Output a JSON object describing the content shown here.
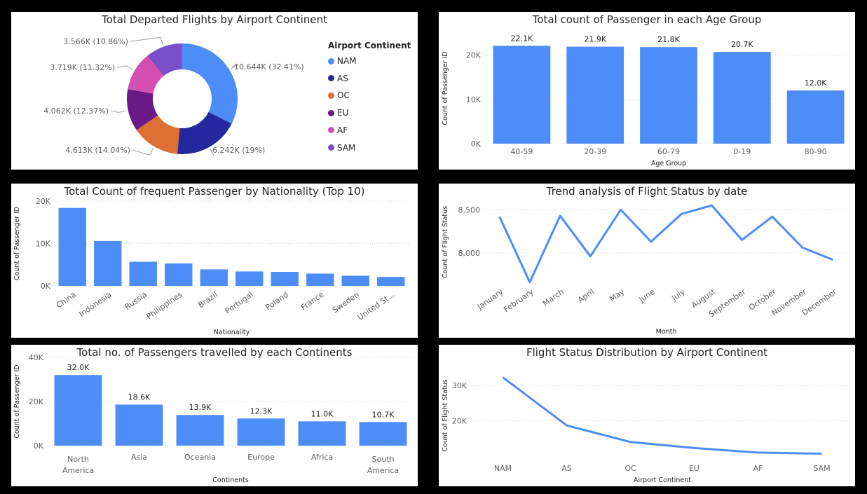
{
  "colors": {
    "bar": "#4c8df7",
    "grid": "#dcdcdc"
  },
  "chart_data": [
    {
      "id": "donut",
      "type": "pie",
      "title": "Total Departed Flights by Airport Continent",
      "legend_title": "Airport Continent",
      "legend_position": "right",
      "slices": [
        {
          "name": "NAM",
          "value": 10644,
          "label": "10.644K (32.41%)",
          "color": "#4c8df7"
        },
        {
          "name": "AS",
          "value": 6242,
          "label": "6.242K (19%)",
          "color": "#24279d"
        },
        {
          "name": "OC",
          "value": 4613,
          "label": "4.613K (14.04%)",
          "color": "#dc6f34"
        },
        {
          "name": "EU",
          "value": 4062,
          "label": "4.062K (12.37%)",
          "color": "#6a1986"
        },
        {
          "name": "AF",
          "value": 3719,
          "label": "3.719K (11.32%)",
          "color": "#d54fb2"
        },
        {
          "name": "SAM",
          "value": 3566,
          "label": "3.566K (10.86%)",
          "color": "#7a4fca"
        }
      ]
    },
    {
      "id": "age",
      "type": "bar",
      "title": "Total count of Passenger in each Age Group",
      "xlabel": "Age Group",
      "ylabel": "Count of Passenger ID",
      "ylim": [
        0,
        25000
      ],
      "yticks": [
        0,
        10000,
        20000
      ],
      "ytick_labels": [
        "0K",
        "10K",
        "20K"
      ],
      "grid": true,
      "categories": [
        "40-59",
        "20-39",
        "60-79",
        "0-19",
        "80-90"
      ],
      "values": [
        22100,
        21900,
        21800,
        20700,
        12000
      ],
      "data_labels": [
        "22.1K",
        "21.9K",
        "21.8K",
        "20.7K",
        "12.0K"
      ]
    },
    {
      "id": "nat",
      "type": "bar",
      "title": "Total Count of frequent Passenger by Nationality (Top 10)",
      "xlabel": "Nationality",
      "ylabel": "Count of Passenger ID",
      "ylim": [
        0,
        20000
      ],
      "yticks": [
        0,
        10000,
        20000
      ],
      "ytick_labels": [
        "0K",
        "10K",
        "20K"
      ],
      "grid": true,
      "categories": [
        "China",
        "Indonesia",
        "Russia",
        "Philippines",
        "Brazil",
        "Portugal",
        "Poland",
        "France",
        "Sweden",
        "United St..."
      ],
      "values": [
        18400,
        10600,
        5700,
        5300,
        3900,
        3400,
        3300,
        2900,
        2400,
        2100
      ]
    },
    {
      "id": "trend",
      "type": "line",
      "title": "Trend analysis of Flight Status by date",
      "xlabel": "Month",
      "ylabel": "Count of Flight Status",
      "ylim": [
        7650,
        8600
      ],
      "yticks": [
        8000,
        8500
      ],
      "ytick_labels": [
        "8,000",
        "8,500"
      ],
      "grid": true,
      "categories": [
        "January",
        "February",
        "March",
        "April",
        "May",
        "June",
        "July",
        "August",
        "September",
        "October",
        "November",
        "December"
      ],
      "values": [
        8420,
        7660,
        8430,
        7960,
        8500,
        8130,
        8450,
        8550,
        8150,
        8420,
        8060,
        7920
      ]
    },
    {
      "id": "cont",
      "type": "bar",
      "title": "Total no. of Passengers travelled by each Continents",
      "xlabel": "Continents",
      "ylabel": "Count of Passenger ID",
      "ylim": [
        0,
        40000
      ],
      "yticks": [
        0,
        20000,
        40000
      ],
      "ytick_labels": [
        "0K",
        "20K",
        "40K"
      ],
      "grid": true,
      "categories": [
        "North America",
        "Asia",
        "Oceania",
        "Europe",
        "Africa",
        "South America"
      ],
      "values": [
        32000,
        18600,
        13900,
        12300,
        11000,
        10700
      ],
      "data_labels": [
        "32.0K",
        "18.6K",
        "13.9K",
        "12.3K",
        "11.0K",
        "10.7K"
      ]
    },
    {
      "id": "dist",
      "type": "line",
      "title": "Flight Status Distribution by Airport Continent",
      "xlabel": "Airport Continent",
      "ylabel": "Count of Flight Status",
      "ylim": [
        9000,
        34000
      ],
      "yticks": [
        20000,
        30000
      ],
      "ytick_labels": [
        "20K",
        "30K"
      ],
      "grid": true,
      "categories": [
        "NAM",
        "AS",
        "OC",
        "EU",
        "AF",
        "SAM"
      ],
      "values": [
        32300,
        18700,
        14000,
        12300,
        11000,
        10700
      ]
    }
  ]
}
